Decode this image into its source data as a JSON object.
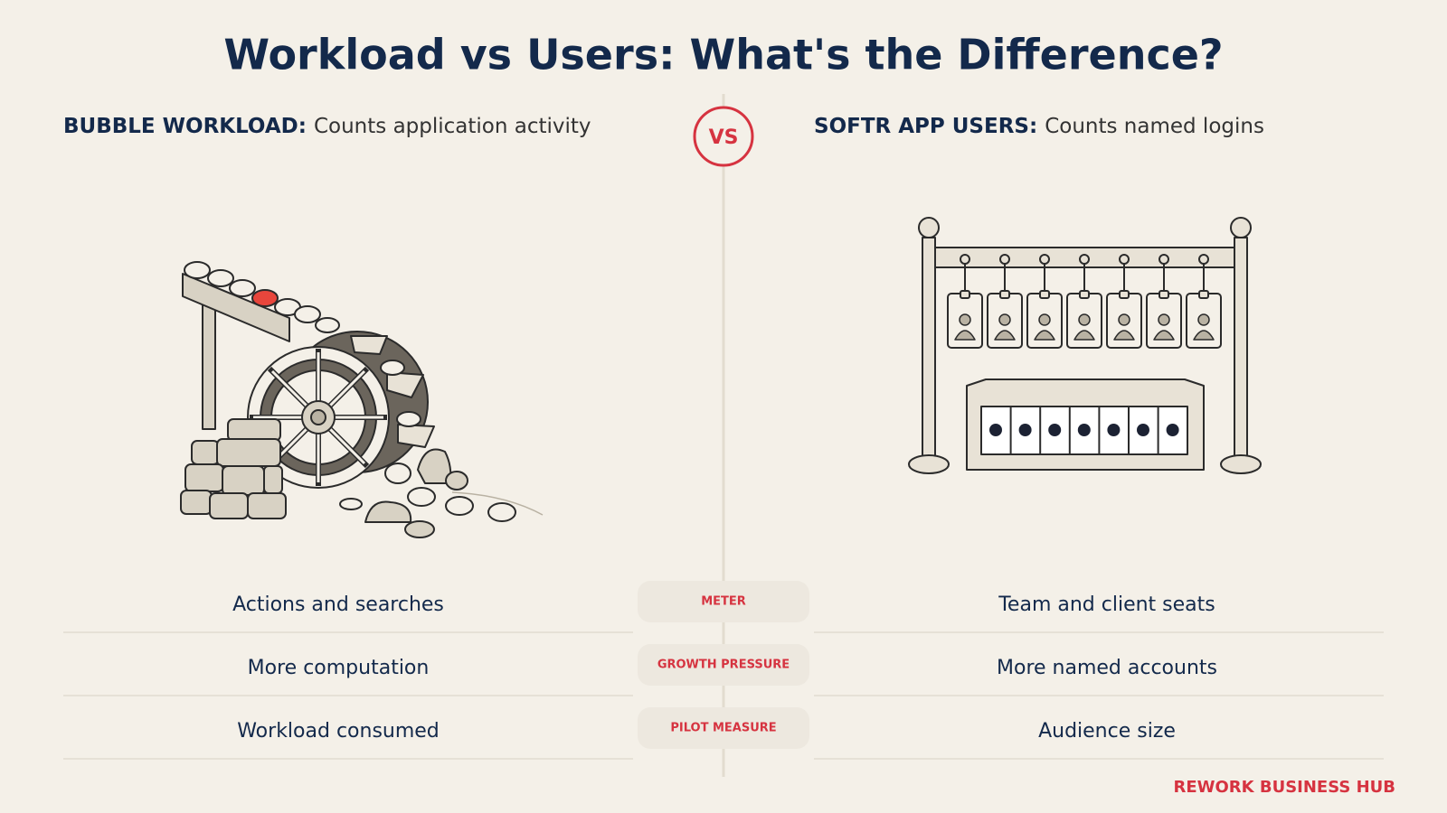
{
  "header": {
    "title": "Workload vs Users: What's the Difference?"
  },
  "left": {
    "label": "BUBBLE WORKLOAD:",
    "description": "Counts application activity"
  },
  "right": {
    "label": "SOFTR APP USERS:",
    "description": "Counts named logins"
  },
  "vs": "VS",
  "rows": [
    {
      "left": "Actions and searches",
      "middle": "METER",
      "right": "Team and client seats"
    },
    {
      "left": "More computation",
      "middle": "GROWTH PRESSURE",
      "right": "More named accounts"
    },
    {
      "left": "Workload consumed",
      "middle": "PILOT MEASURE",
      "right": "Audience size"
    }
  ],
  "footer": {
    "brand": "REWORK BUSINESS HUB"
  }
}
